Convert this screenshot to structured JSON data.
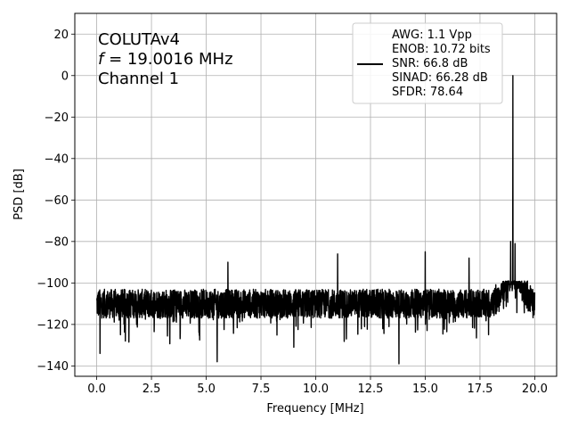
{
  "chart_data": {
    "type": "line",
    "annotation_lines": [
      "COLUTAv4",
      "f = 19.0016 MHz",
      "Channel 1"
    ],
    "annotation_parts": {
      "name": "COLUTAv4",
      "freq_symbol": "f",
      "freq_text": " = 19.0016 MHz",
      "channel": "Channel 1"
    },
    "xlabel": "Frequency [MHz]",
    "ylabel": "PSD [dB]",
    "xlim": [
      -1,
      21
    ],
    "ylim": [
      -145,
      30
    ],
    "x_ticks": [
      0.0,
      2.5,
      5.0,
      7.5,
      10.0,
      12.5,
      15.0,
      17.5,
      20.0
    ],
    "x_tick_labels": [
      "0.0",
      "2.5",
      "5.0",
      "7.5",
      "10.0",
      "12.5",
      "15.0",
      "17.5",
      "20.0"
    ],
    "y_ticks": [
      20,
      0,
      -20,
      -40,
      -60,
      -80,
      -100,
      -120,
      -140
    ],
    "y_tick_labels": [
      "20",
      "0",
      "−20",
      "−40",
      "−60",
      "−80",
      "−100",
      "−120",
      "−140"
    ],
    "grid": true,
    "legend_position": "top-right",
    "legend_lines": [
      "AWG: 1.1 Vpp",
      "ENOB: 10.72 bits",
      "SNR: 66.8 dB",
      "SINAD: 66.28 dB",
      "SFDR: 78.64"
    ],
    "series": [
      {
        "color": "#000000",
        "noise_floor_db": -110,
        "noise_range_db": [
          -139,
          -99
        ],
        "fundamental": {
          "x": 19.0016,
          "y": 0
        },
        "spurs": [
          {
            "x": 5.99,
            "y": -90
          },
          {
            "x": 11.0,
            "y": -86
          },
          {
            "x": 15.0,
            "y": -85
          },
          {
            "x": 17.0,
            "y": -88
          },
          {
            "x": 18.9,
            "y": -80
          },
          {
            "x": 19.1,
            "y": -81
          }
        ],
        "dips": [
          {
            "x": 0.15,
            "y": -134
          },
          {
            "x": 5.5,
            "y": -138
          },
          {
            "x": 9.0,
            "y": -131
          },
          {
            "x": 13.8,
            "y": -139
          },
          {
            "x": 11.4,
            "y": -127
          }
        ]
      }
    ]
  }
}
